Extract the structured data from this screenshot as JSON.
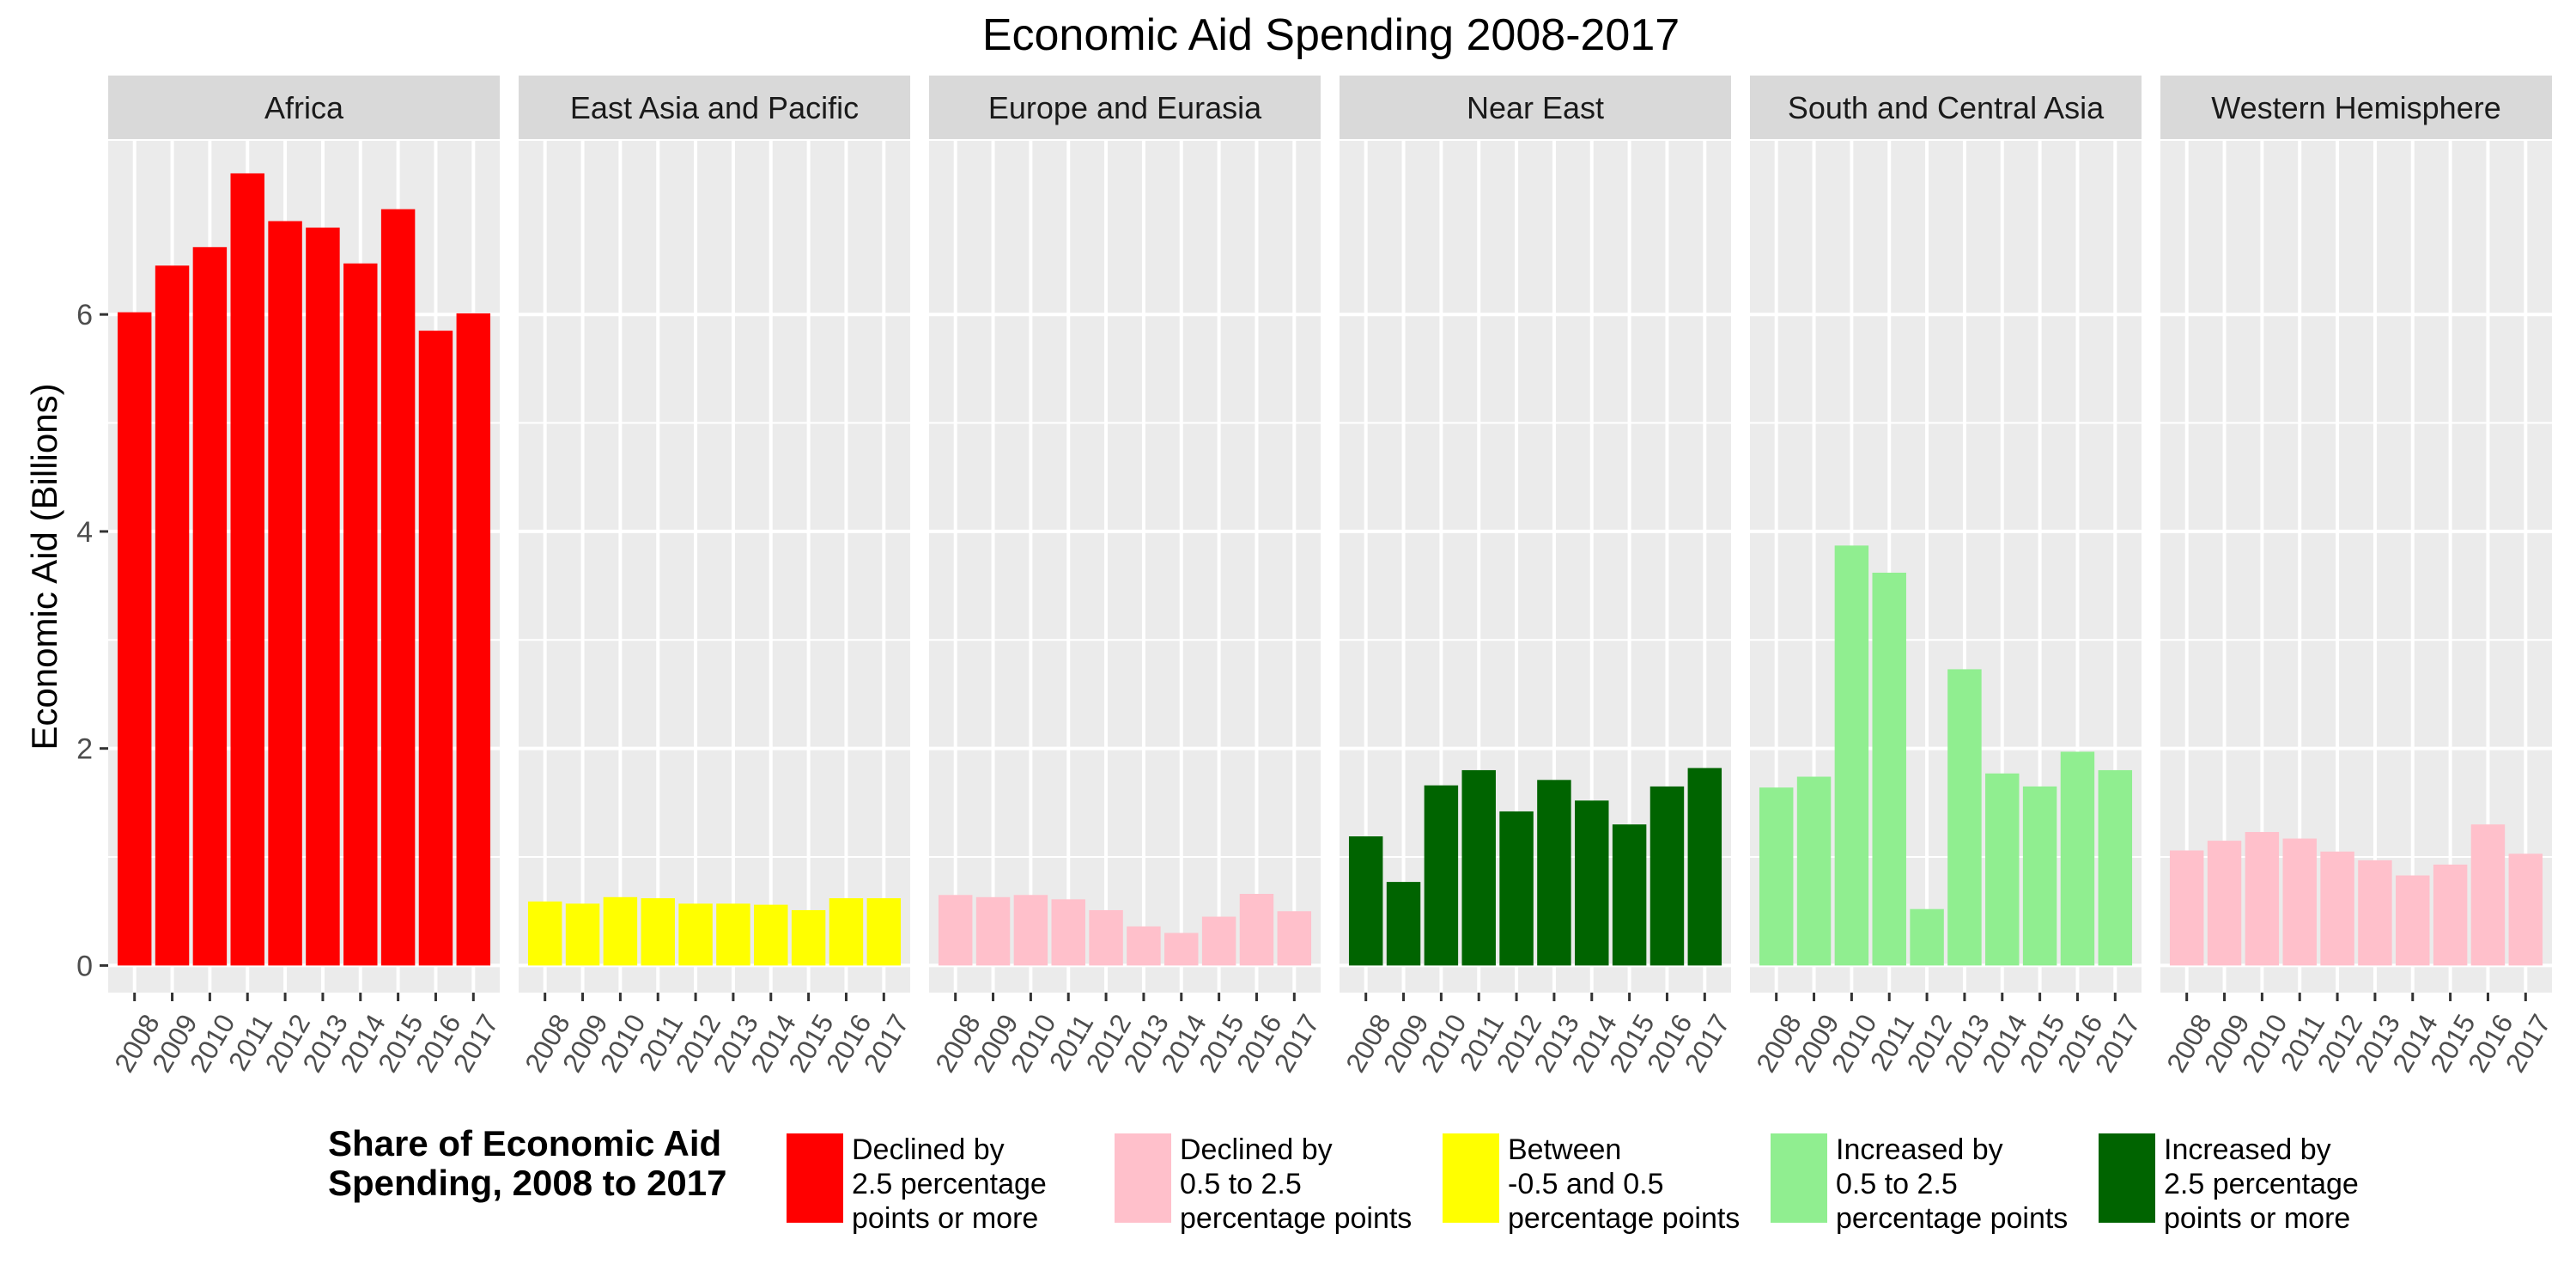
{
  "chart_data": {
    "type": "bar",
    "title": "Economic Aid Spending 2008-2017",
    "xlabel": "",
    "ylabel": "Economic Aid (Billions)",
    "ylim": [
      -0.25,
      7.6
    ],
    "yticks": [
      0,
      2,
      4,
      6
    ],
    "grid": true,
    "categories": [
      "2008",
      "2009",
      "2010",
      "2011",
      "2012",
      "2013",
      "2014",
      "2015",
      "2016",
      "2017"
    ],
    "panels": [
      {
        "name": "Africa",
        "class": "declined_25",
        "values": [
          6.02,
          6.45,
          6.62,
          7.3,
          6.86,
          6.8,
          6.47,
          6.97,
          5.85,
          6.01
        ]
      },
      {
        "name": "East Asia and Pacific",
        "class": "between",
        "values": [
          0.59,
          0.57,
          0.63,
          0.62,
          0.57,
          0.57,
          0.56,
          0.51,
          0.62,
          0.62
        ]
      },
      {
        "name": "Europe and Eurasia",
        "class": "declined_05_25",
        "values": [
          0.65,
          0.63,
          0.65,
          0.61,
          0.51,
          0.36,
          0.3,
          0.45,
          0.66,
          0.5
        ]
      },
      {
        "name": "Near East",
        "class": "increased_25",
        "values": [
          1.19,
          0.77,
          1.66,
          1.8,
          1.42,
          1.71,
          1.52,
          1.3,
          1.65,
          1.82
        ]
      },
      {
        "name": "South and Central Asia",
        "class": "increased_05_25",
        "values": [
          1.64,
          1.74,
          3.87,
          3.62,
          0.52,
          2.73,
          1.77,
          1.65,
          1.97,
          1.8
        ]
      },
      {
        "name": "Western Hemisphere",
        "class": "declined_05_25",
        "values": [
          1.06,
          1.15,
          1.23,
          1.17,
          1.05,
          0.97,
          0.83,
          0.93,
          1.3,
          1.03
        ]
      }
    ],
    "legend": {
      "title_lines": [
        "Share of Economic Aid",
        "Spending, 2008 to 2017"
      ],
      "position": "bottom",
      "items": [
        {
          "key": "declined_25",
          "lines": [
            "Declined by",
            "2.5 percentage",
            "points or more"
          ],
          "color": "#FF0000"
        },
        {
          "key": "declined_05_25",
          "lines": [
            "Declined by",
            "0.5 to 2.5",
            "percentage points"
          ],
          "color": "#FFC0CB"
        },
        {
          "key": "between",
          "lines": [
            "Between",
            "-0.5 and 0.5",
            "percentage points"
          ],
          "color": "#FFFF00"
        },
        {
          "key": "increased_05_25",
          "lines": [
            "Increased by",
            "0.5 to 2.5",
            "percentage points"
          ],
          "color": "#90EE90"
        },
        {
          "key": "increased_25",
          "lines": [
            "Increased by",
            "2.5 percentage",
            "points or more"
          ],
          "color": "#006400"
        }
      ]
    }
  }
}
